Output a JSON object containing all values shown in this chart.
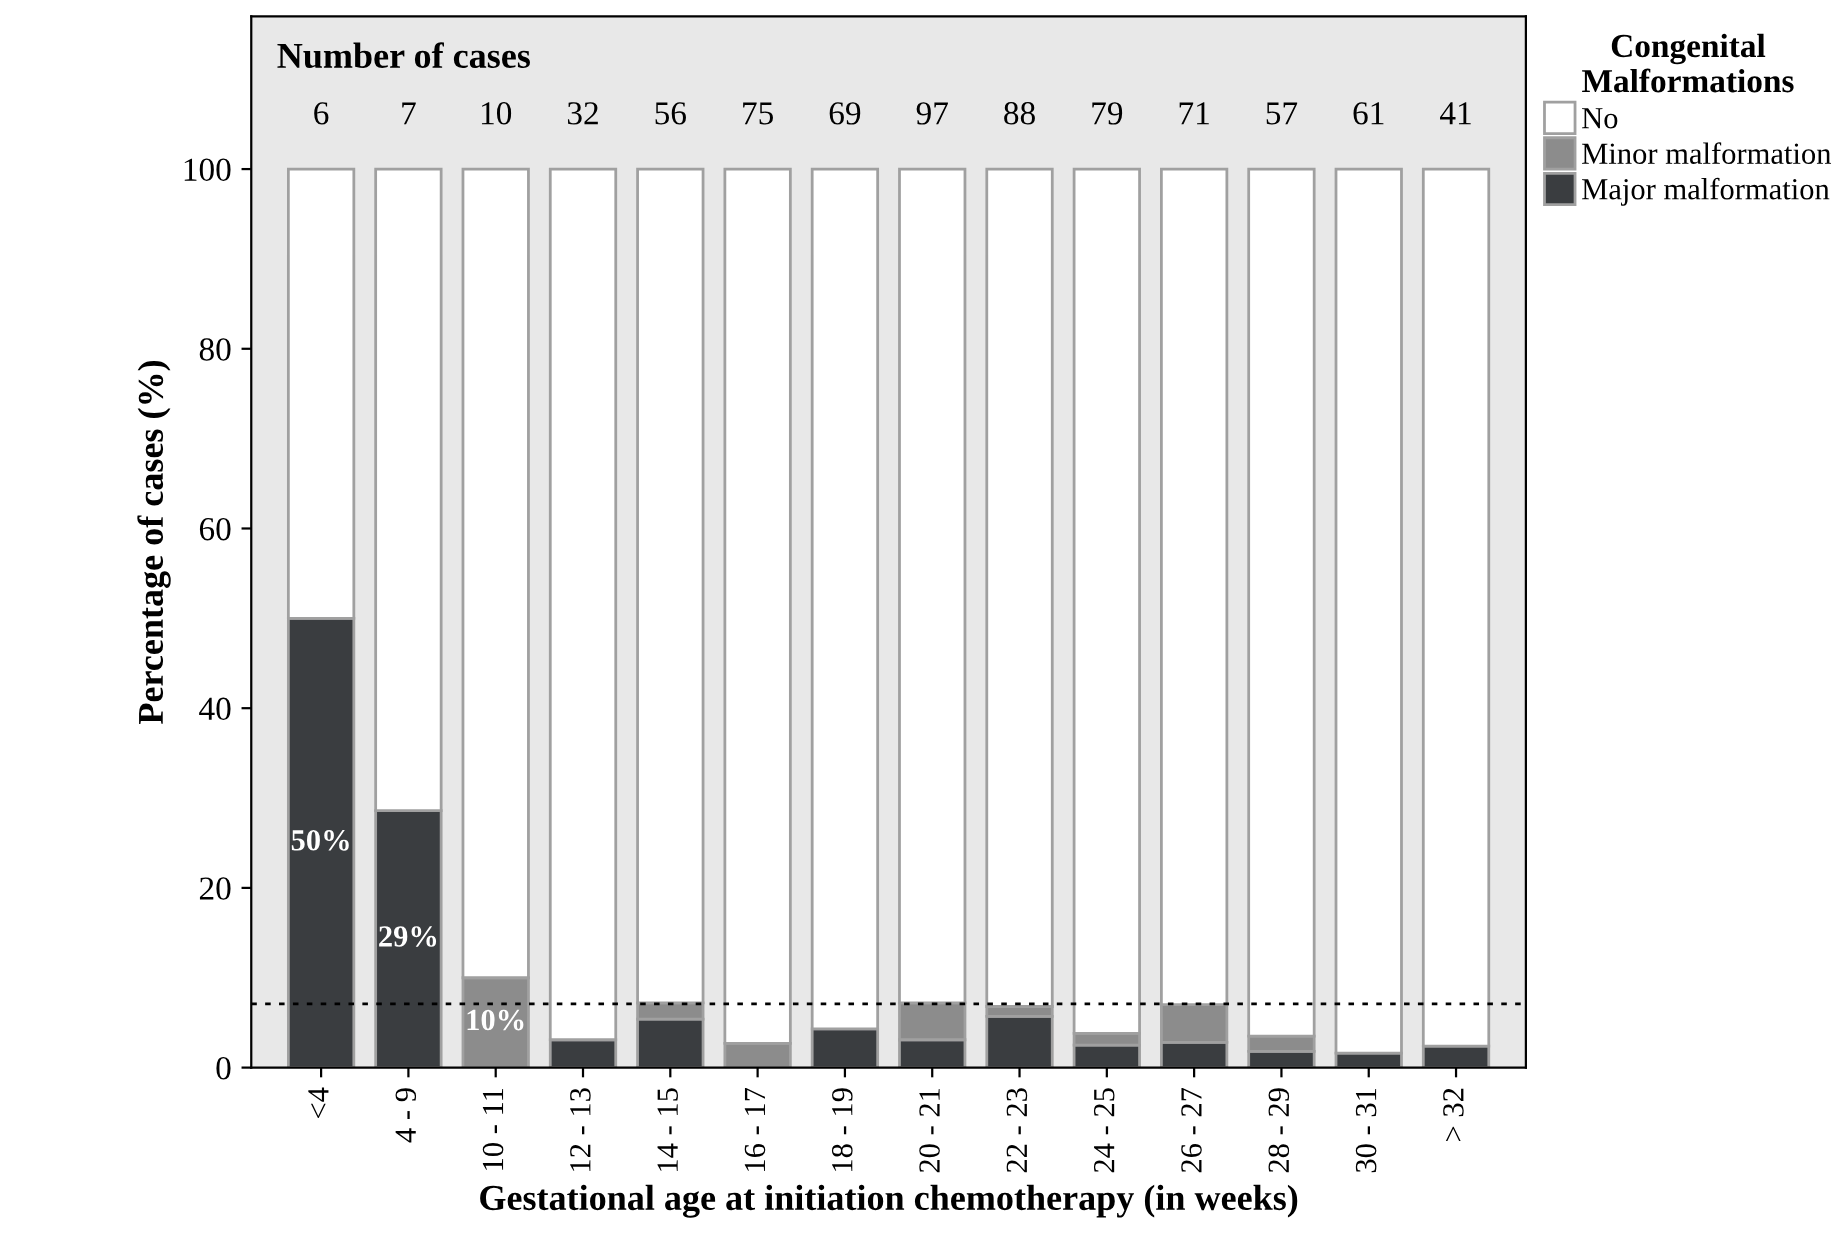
{
  "chart_data": {
    "type": "bar",
    "stacked": true,
    "xlabel": "Gestational age at initiation chemotherapy (in weeks)",
    "ylabel": "Percentage of cases (%)",
    "legend_title": "Congenital\nMalformations",
    "legend": "top right",
    "categories": [
      "<4",
      "4 - 9",
      "10 - 11",
      "12 - 13",
      "14 - 15",
      "16 - 17",
      "18 - 19",
      "20 - 21",
      "22 - 23",
      "24 - 25",
      "26 - 27",
      "28 - 29",
      "30 - 31",
      "> 32"
    ],
    "series": [
      {
        "name": "Major malformation",
        "color": "#3a3d40",
        "values": [
          50,
          28.6,
          null,
          3.1,
          5.4,
          null,
          4.3,
          3.1,
          5.7,
          2.5,
          2.8,
          1.8,
          1.6,
          2.4
        ],
        "value_labels": [
          "50%",
          "29%",
          null,
          null,
          null,
          null,
          null,
          null,
          null,
          null,
          null,
          null,
          null,
          null
        ]
      },
      {
        "name": "Minor malformation",
        "color": "#8c8c8c",
        "values": [
          null,
          null,
          10,
          null,
          1.8,
          2.7,
          null,
          4.1,
          1.1,
          1.3,
          4.2,
          1.7,
          null,
          null
        ],
        "value_labels": [
          null,
          null,
          "10%",
          null,
          null,
          null,
          null,
          null,
          null,
          null,
          null,
          null,
          null,
          null
        ]
      },
      {
        "name": "No",
        "color": "#ffffff",
        "values": [
          50,
          71.4,
          90,
          96.9,
          92.8,
          97.3,
          95.7,
          92.8,
          93.2,
          96.2,
          93.0,
          96.5,
          98.4,
          97.6
        ]
      }
    ],
    "ylim": [
      0,
      117
    ],
    "yticks": [
      0,
      20,
      40,
      60,
      80,
      100
    ],
    "grid": false,
    "ref_lines": [
      {
        "axis": "y",
        "value": 7.1,
        "line_style": "dotted",
        "color": "#000000"
      }
    ],
    "annotations": [
      "Number of cases",
      "6",
      "7",
      "10",
      "32",
      "56",
      "75",
      "69",
      "97",
      "88",
      "79",
      "71",
      "57",
      "61",
      "41"
    ]
  }
}
